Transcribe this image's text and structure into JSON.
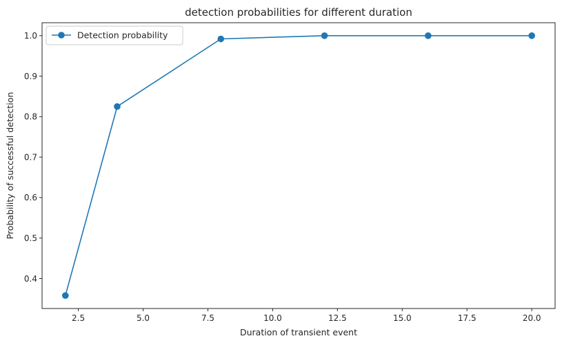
{
  "chart_data": {
    "type": "line",
    "title": "detection probabilities for different duration",
    "xlabel": "Duration of transient event",
    "ylabel": "Probability of successful detection",
    "xlim": [
      1.1,
      20.9
    ],
    "ylim": [
      0.326,
      1.032
    ],
    "xticks": [
      2.5,
      5.0,
      7.5,
      10.0,
      12.5,
      15.0,
      17.5,
      20.0
    ],
    "xtick_labels": [
      "2.5",
      "5.0",
      "7.5",
      "10.0",
      "12.5",
      "15.0",
      "17.5",
      "20.0"
    ],
    "yticks": [
      0.4,
      0.5,
      0.6,
      0.7,
      0.8,
      0.9,
      1.0
    ],
    "ytick_labels": [
      "0.4",
      "0.5",
      "0.6",
      "0.7",
      "0.8",
      "0.9",
      "1.0"
    ],
    "grid": false,
    "legend_position": "top-left",
    "series": [
      {
        "name": "Detection probability",
        "color": "#1f77b4",
        "marker": "circle",
        "x": [
          2,
          4,
          8,
          12,
          16,
          20
        ],
        "y": [
          0.358,
          0.825,
          0.992,
          1.0,
          1.0,
          1.0
        ]
      }
    ]
  }
}
